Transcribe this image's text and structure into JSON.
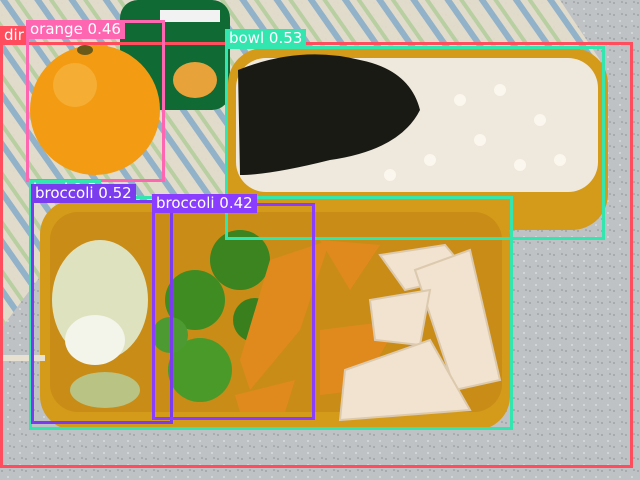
{
  "detections": [
    {
      "label": "dining table 0.5",
      "visible_text": "dir",
      "color": "#ff4d5e"
    },
    {
      "label": "orange 0.46",
      "color": "#ff66b2"
    },
    {
      "label": "bowl 0.53",
      "color": "#33e6b0"
    },
    {
      "label": "bowl 0.5",
      "color": "#33e6b0"
    },
    {
      "label": "broccoli 0.52",
      "color": "#7b3cf0"
    },
    {
      "label": "broccoli 0.42",
      "color": "#8a3cff"
    }
  ],
  "scene": {
    "description_icons": [
      "orange-icon",
      "yogurt-cup-icon",
      "rice-icon",
      "seaweed-icon",
      "broccoli-icon",
      "cabbage-icon",
      "squash-icon",
      "tofu-icon",
      "bento-box-icon"
    ],
    "colors": {
      "tablecloth": "#d9d2c3",
      "counter": "#c0c3c5",
      "tray": "#d49a1a",
      "rice": "#efe8dc",
      "seaweed": "#1a1a14",
      "orange": "#f39b12",
      "broccoli": "#3f8c22",
      "squash": "#e08a1e",
      "tofu": "#f1e3cf",
      "cabbage": "#d8dcb4"
    }
  }
}
